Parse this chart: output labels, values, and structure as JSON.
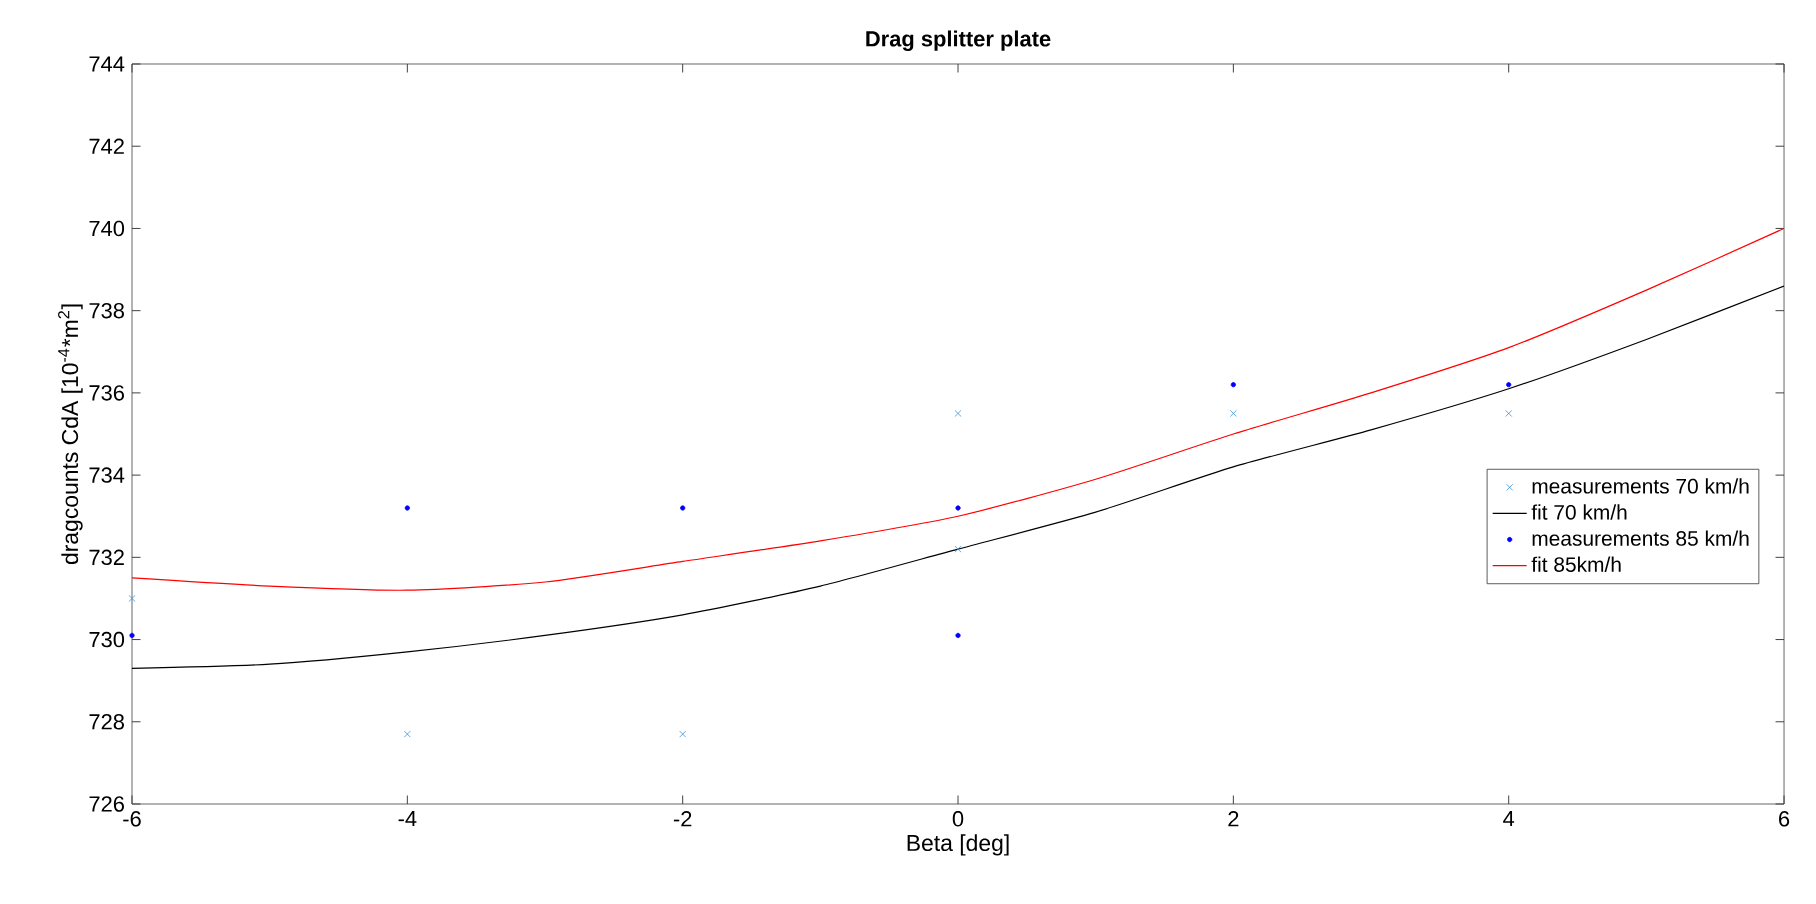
{
  "chart_data": {
    "type": "scatter",
    "title": "Drag splitter plate",
    "xlabel": "Beta [deg]",
    "ylabel": "dragcounts CdA [10$^{-4}$*m$^{2}$]",
    "xlim": [
      -6,
      6
    ],
    "ylim": [
      726,
      744
    ],
    "xticks": [
      -6,
      -4,
      -2,
      0,
      2,
      4,
      6
    ],
    "yticks": [
      726,
      728,
      730,
      732,
      734,
      736,
      738,
      740,
      742,
      744
    ],
    "grid": false,
    "legend": "right",
    "series": [
      {
        "name": "measurements 70 km/h",
        "marker": "cross",
        "color": "#3a93d6",
        "x": [
          -6,
          -4,
          -2,
          0,
          0,
          2,
          4
        ],
        "values": [
          731.0,
          727.7,
          727.7,
          735.5,
          732.2,
          735.5,
          735.5
        ]
      },
      {
        "name": "fit 70 km/h",
        "type": "line",
        "marker": "none",
        "color": "#000000",
        "x": [
          -6,
          -5,
          -4,
          -3,
          -2,
          -1,
          0,
          1,
          2,
          3,
          4,
          5,
          6
        ],
        "values": [
          729.3,
          729.4,
          729.7,
          730.1,
          730.6,
          731.3,
          732.2,
          733.1,
          734.2,
          735.1,
          736.1,
          737.3,
          738.6
        ]
      },
      {
        "name": "measurements 85 km/h",
        "marker": "circle",
        "color": "#0000ff",
        "x": [
          -6,
          -4,
          -2,
          0,
          0,
          2,
          4
        ],
        "values": [
          730.1,
          733.2,
          733.2,
          733.2,
          730.1,
          736.2,
          736.2
        ]
      },
      {
        "name": "fit 85km/h",
        "type": "line",
        "marker": "none",
        "color": "#ff0000",
        "x": [
          -6,
          -5,
          -4,
          -3,
          -2,
          -1,
          0,
          1,
          2,
          3,
          4,
          5,
          6
        ],
        "values": [
          731.5,
          731.3,
          731.2,
          731.4,
          731.9,
          732.4,
          733.0,
          733.9,
          735.0,
          736.0,
          737.1,
          738.5,
          740.0
        ]
      }
    ]
  }
}
